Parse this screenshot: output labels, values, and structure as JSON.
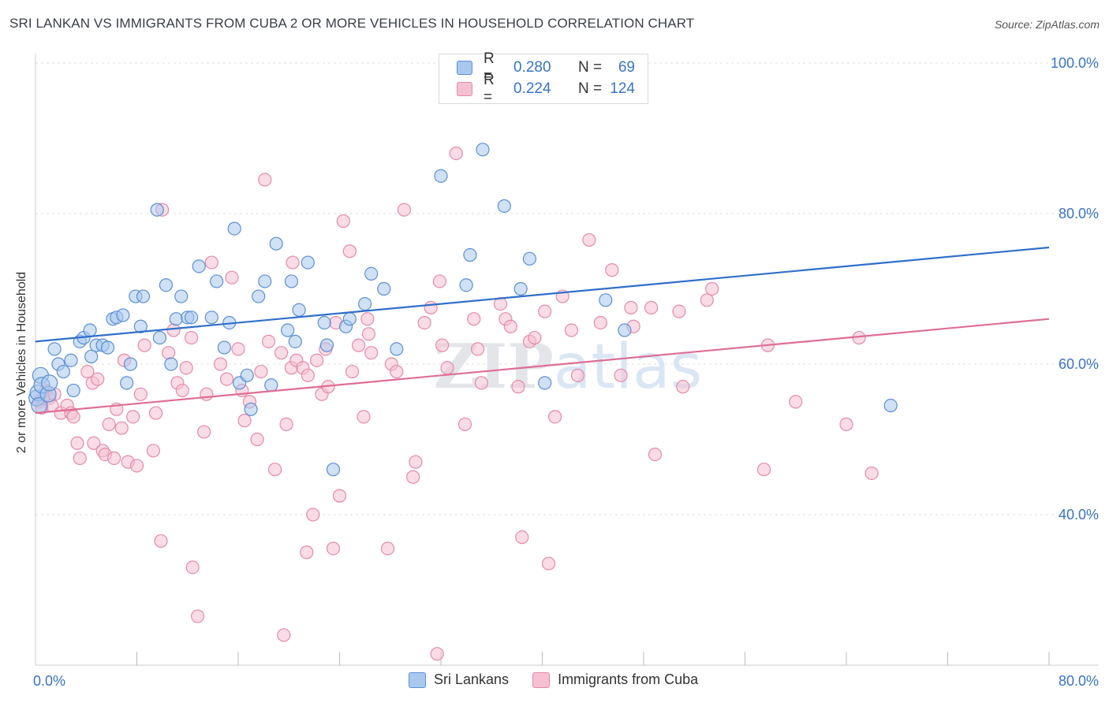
{
  "title": "SRI LANKAN VS IMMIGRANTS FROM CUBA 2 OR MORE VEHICLES IN HOUSEHOLD CORRELATION CHART",
  "source": "Source: ZipAtlas.com",
  "watermark": "ZIPatlas",
  "legend_top": {
    "rows": [
      {
        "r_label": "R =",
        "r_value": "0.280",
        "n_label": "N =",
        "n_value": "69"
      },
      {
        "r_label": "R =",
        "r_value": "0.224",
        "n_label": "N =",
        "n_value": "124"
      }
    ]
  },
  "chart_data": {
    "type": "scatter",
    "ylabel": "2 or more Vehicles in Household",
    "xlim": [
      0,
      80
    ],
    "ylim": [
      20,
      100
    ],
    "x_tick_labels": [
      "0.0%",
      "80.0%"
    ],
    "y_tick_labels": [
      "100.0%",
      "80.0%",
      "60.0%",
      "40.0%"
    ],
    "y_ticks": [
      100,
      80,
      60,
      40
    ],
    "grid": "horizontal dashed",
    "colors": {
      "blue_fill": "#a9c8ee",
      "blue_stroke": "#5b8fd6",
      "blue_line": "#2f6fcb",
      "pink_fill": "#f6bfd2",
      "pink_stroke": "#e58aa9",
      "pink_line": "#df6d96",
      "axis_text": "#3a73c9"
    },
    "series": [
      {
        "name": "Sri Lankans",
        "color": "#5b8fd6",
        "trend": {
          "x0": 0,
          "y0": 63.0,
          "x1": 80,
          "y1": 75.5
        },
        "points": [
          [
            0.1,
            55.5
          ],
          [
            0.2,
            56.2
          ],
          [
            0.3,
            54.5
          ],
          [
            0.4,
            58.5
          ],
          [
            0.5,
            57.2
          ],
          [
            1.0,
            56.0
          ],
          [
            1.1,
            57.5
          ],
          [
            1.5,
            62.0
          ],
          [
            1.8,
            60.0
          ],
          [
            2.2,
            59.0
          ],
          [
            2.8,
            60.5
          ],
          [
            3.0,
            56.5
          ],
          [
            3.5,
            63.0
          ],
          [
            3.8,
            63.5
          ],
          [
            4.3,
            64.5
          ],
          [
            4.4,
            61.0
          ],
          [
            4.8,
            62.5
          ],
          [
            5.3,
            62.5
          ],
          [
            5.7,
            62.2
          ],
          [
            6.1,
            66.0
          ],
          [
            6.4,
            66.2
          ],
          [
            6.9,
            66.5
          ],
          [
            7.2,
            57.5
          ],
          [
            7.5,
            60.0
          ],
          [
            7.9,
            69.0
          ],
          [
            8.3,
            65.0
          ],
          [
            8.5,
            69.0
          ],
          [
            9.6,
            80.5
          ],
          [
            9.8,
            63.5
          ],
          [
            10.3,
            70.5
          ],
          [
            10.7,
            60.0
          ],
          [
            11.1,
            66.0
          ],
          [
            11.5,
            69.0
          ],
          [
            12.0,
            66.2
          ],
          [
            12.3,
            66.2
          ],
          [
            12.9,
            73.0
          ],
          [
            13.9,
            66.2
          ],
          [
            14.3,
            71.0
          ],
          [
            14.9,
            62.2
          ],
          [
            15.3,
            65.5
          ],
          [
            15.7,
            78.0
          ],
          [
            16.1,
            57.5
          ],
          [
            16.7,
            58.5
          ],
          [
            17.0,
            54.0
          ],
          [
            17.6,
            69.0
          ],
          [
            18.1,
            71.0
          ],
          [
            18.6,
            57.2
          ],
          [
            19.0,
            76.0
          ],
          [
            19.9,
            64.5
          ],
          [
            20.2,
            71.0
          ],
          [
            20.5,
            63.0
          ],
          [
            20.8,
            67.2
          ],
          [
            21.5,
            73.5
          ],
          [
            22.8,
            65.5
          ],
          [
            23.0,
            62.5
          ],
          [
            23.5,
            46.0
          ],
          [
            24.5,
            65.0
          ],
          [
            24.8,
            66.0
          ],
          [
            26.0,
            68.0
          ],
          [
            26.5,
            72.0
          ],
          [
            27.5,
            70.0
          ],
          [
            28.5,
            62.0
          ],
          [
            32.0,
            85.0
          ],
          [
            34.0,
            70.5
          ],
          [
            34.3,
            74.5
          ],
          [
            35.3,
            88.5
          ],
          [
            37.0,
            81.0
          ],
          [
            38.3,
            70.0
          ],
          [
            39.0,
            74.0
          ],
          [
            40.2,
            57.5
          ],
          [
            45.0,
            68.5
          ],
          [
            46.5,
            64.5
          ],
          [
            67.5,
            54.5
          ]
        ]
      },
      {
        "name": "Immigrants from Cuba",
        "color": "#e58aa9",
        "trend": {
          "x0": 0,
          "y0": 53.5,
          "x1": 80,
          "y1": 66.0
        },
        "points": [
          [
            0.3,
            55.0
          ],
          [
            0.5,
            54.2
          ],
          [
            0.6,
            55.5
          ],
          [
            0.8,
            56.5
          ],
          [
            1.1,
            55.5
          ],
          [
            1.3,
            54.5
          ],
          [
            1.5,
            56.0
          ],
          [
            2.0,
            53.5
          ],
          [
            2.5,
            54.5
          ],
          [
            2.8,
            53.5
          ],
          [
            3.0,
            53.0
          ],
          [
            3.3,
            49.5
          ],
          [
            3.5,
            47.5
          ],
          [
            4.1,
            59.0
          ],
          [
            4.5,
            57.5
          ],
          [
            4.6,
            49.5
          ],
          [
            4.9,
            58.0
          ],
          [
            5.3,
            48.5
          ],
          [
            5.5,
            48.0
          ],
          [
            5.8,
            52.0
          ],
          [
            6.2,
            47.5
          ],
          [
            6.4,
            54.0
          ],
          [
            6.8,
            51.5
          ],
          [
            7.0,
            60.5
          ],
          [
            7.3,
            47.0
          ],
          [
            7.7,
            53.0
          ],
          [
            8.0,
            46.5
          ],
          [
            8.3,
            56.0
          ],
          [
            8.6,
            62.5
          ],
          [
            9.3,
            48.5
          ],
          [
            9.5,
            53.5
          ],
          [
            9.9,
            36.5
          ],
          [
            10.0,
            80.5
          ],
          [
            10.5,
            61.5
          ],
          [
            10.9,
            64.5
          ],
          [
            11.2,
            57.5
          ],
          [
            11.6,
            56.5
          ],
          [
            11.9,
            59.5
          ],
          [
            12.3,
            63.5
          ],
          [
            12.4,
            33.0
          ],
          [
            12.8,
            26.5
          ],
          [
            13.3,
            51.0
          ],
          [
            13.5,
            56.0
          ],
          [
            13.9,
            73.5
          ],
          [
            14.6,
            60.0
          ],
          [
            15.1,
            58.0
          ],
          [
            15.5,
            71.5
          ],
          [
            16.0,
            62.0
          ],
          [
            16.3,
            56.5
          ],
          [
            16.5,
            52.5
          ],
          [
            16.9,
            55.0
          ],
          [
            17.5,
            50.0
          ],
          [
            17.8,
            59.0
          ],
          [
            18.1,
            84.5
          ],
          [
            18.4,
            63.0
          ],
          [
            18.9,
            46.0
          ],
          [
            19.4,
            61.5
          ],
          [
            19.6,
            24.0
          ],
          [
            19.8,
            52.0
          ],
          [
            20.2,
            59.5
          ],
          [
            20.3,
            73.5
          ],
          [
            20.6,
            60.5
          ],
          [
            21.1,
            59.5
          ],
          [
            21.4,
            35.0
          ],
          [
            21.5,
            58.5
          ],
          [
            21.9,
            40.0
          ],
          [
            22.2,
            60.5
          ],
          [
            22.6,
            56.0
          ],
          [
            22.9,
            62.0
          ],
          [
            23.1,
            57.0
          ],
          [
            23.5,
            35.5
          ],
          [
            23.7,
            65.5
          ],
          [
            24.0,
            42.5
          ],
          [
            24.3,
            79.0
          ],
          [
            24.8,
            75.0
          ],
          [
            25.0,
            59.0
          ],
          [
            25.5,
            62.5
          ],
          [
            25.9,
            53.0
          ],
          [
            26.2,
            66.0
          ],
          [
            26.3,
            64.0
          ],
          [
            26.5,
            61.5
          ],
          [
            27.8,
            35.5
          ],
          [
            28.1,
            60.0
          ],
          [
            28.5,
            59.0
          ],
          [
            29.1,
            80.5
          ],
          [
            29.8,
            45.0
          ],
          [
            30.0,
            47.0
          ],
          [
            30.7,
            65.5
          ],
          [
            31.2,
            67.5
          ],
          [
            31.7,
            21.5
          ],
          [
            31.9,
            71.0
          ],
          [
            32.1,
            62.5
          ],
          [
            32.5,
            59.5
          ],
          [
            33.2,
            88.0
          ],
          [
            33.9,
            52.0
          ],
          [
            34.6,
            66.0
          ],
          [
            34.9,
            62.0
          ],
          [
            35.2,
            57.5
          ],
          [
            36.7,
            68.0
          ],
          [
            37.1,
            66.0
          ],
          [
            37.5,
            65.0
          ],
          [
            38.1,
            57.0
          ],
          [
            38.4,
            37.0
          ],
          [
            39.0,
            63.0
          ],
          [
            39.4,
            63.5
          ],
          [
            40.2,
            67.0
          ],
          [
            40.5,
            33.5
          ],
          [
            41.0,
            53.0
          ],
          [
            41.6,
            69.0
          ],
          [
            42.3,
            64.5
          ],
          [
            42.8,
            58.5
          ],
          [
            43.7,
            76.5
          ],
          [
            44.6,
            65.5
          ],
          [
            45.5,
            72.5
          ],
          [
            46.2,
            58.5
          ],
          [
            47.0,
            67.5
          ],
          [
            47.2,
            65.0
          ],
          [
            48.6,
            67.5
          ],
          [
            48.9,
            48.0
          ],
          [
            50.8,
            67.0
          ],
          [
            51.1,
            57.0
          ],
          [
            53.0,
            68.5
          ],
          [
            53.4,
            70.0
          ],
          [
            57.5,
            46.0
          ],
          [
            57.8,
            62.5
          ],
          [
            60.0,
            55.0
          ],
          [
            64.0,
            52.0
          ],
          [
            65.0,
            63.5
          ],
          [
            66.0,
            45.5
          ]
        ]
      }
    ]
  },
  "legend_bottom": [
    {
      "label": "Sri Lankans"
    },
    {
      "label": "Immigrants from Cuba"
    }
  ]
}
